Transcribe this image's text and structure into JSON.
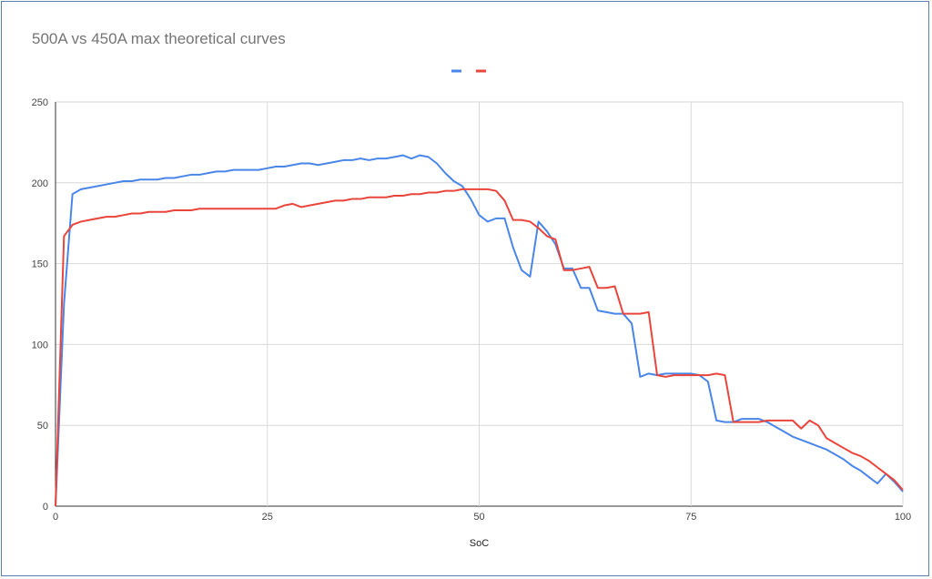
{
  "chart_data": {
    "type": "line",
    "title": "500A vs 450A max theoretical curves",
    "xlabel": "SoC",
    "ylabel": "",
    "xlim": [
      0,
      100
    ],
    "ylim": [
      0,
      250
    ],
    "x_ticks": [
      "0",
      "25",
      "50",
      "75",
      "100"
    ],
    "y_ticks": [
      "0",
      "50",
      "100",
      "150",
      "200",
      "250"
    ],
    "grid": true,
    "legend": "top-center",
    "series": [
      {
        "name": "",
        "color": "#4a86e8",
        "values": [
          0,
          125,
          193,
          196,
          197,
          198,
          199,
          200,
          201,
          201,
          202,
          202,
          202,
          203,
          203,
          204,
          205,
          205,
          206,
          207,
          207,
          208,
          208,
          208,
          208,
          209,
          210,
          210,
          211,
          212,
          212,
          211,
          212,
          213,
          214,
          214,
          215,
          214,
          215,
          215,
          216,
          217,
          215,
          217,
          216,
          212,
          206,
          201,
          198,
          190,
          180,
          176,
          178,
          178,
          160,
          146,
          142,
          176,
          170,
          162,
          147,
          147,
          135,
          135,
          121,
          120,
          119,
          119,
          113,
          80,
          82,
          81,
          82,
          82,
          82,
          82,
          81,
          77,
          53,
          52,
          52,
          54,
          54,
          54,
          52,
          49,
          46,
          43,
          41,
          39,
          37,
          35,
          32,
          29,
          25,
          22,
          18,
          14,
          20,
          15,
          9
        ]
      },
      {
        "name": "",
        "color": "#e8453c",
        "values": [
          0,
          167,
          174,
          176,
          177,
          178,
          179,
          179,
          180,
          181,
          181,
          182,
          182,
          182,
          183,
          183,
          183,
          184,
          184,
          184,
          184,
          184,
          184,
          184,
          184,
          184,
          184,
          186,
          187,
          185,
          186,
          187,
          188,
          189,
          189,
          190,
          190,
          191,
          191,
          191,
          192,
          192,
          193,
          193,
          194,
          194,
          195,
          195,
          196,
          196,
          196,
          196,
          195,
          189,
          177,
          177,
          176,
          172,
          167,
          165,
          146,
          146,
          147,
          148,
          135,
          135,
          136,
          119,
          119,
          119,
          120,
          81,
          80,
          81,
          81,
          81,
          81,
          81,
          82,
          81,
          52,
          52,
          52,
          52,
          53,
          53,
          53,
          53,
          48,
          53,
          50,
          42,
          39,
          36,
          33,
          31,
          28,
          24,
          20,
          16,
          10
        ]
      }
    ]
  }
}
